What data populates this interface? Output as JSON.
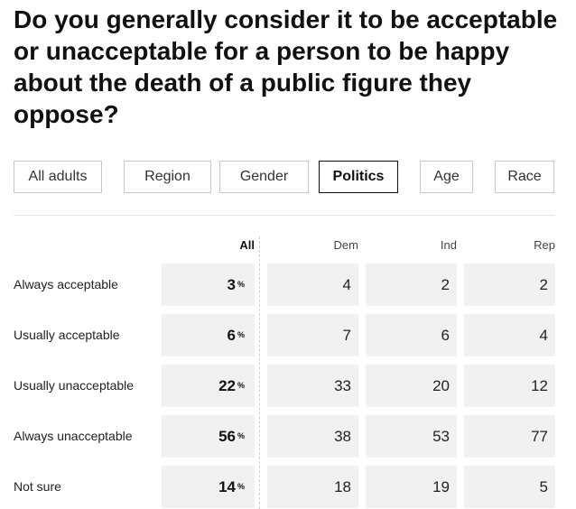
{
  "title": "Do you generally consider it to be acceptable or unacceptable for a person to be happy about the death of a public figure they oppose?",
  "tabs": [
    {
      "label": "All adults",
      "active": false
    },
    {
      "label": "Region",
      "active": false
    },
    {
      "label": "Gender",
      "active": false
    },
    {
      "label": "Politics",
      "active": true
    },
    {
      "label": "Age",
      "active": false
    },
    {
      "label": "Race",
      "active": false
    }
  ],
  "percent_symbol": "%",
  "chart_data": {
    "type": "table",
    "columns": [
      "All",
      "Dem",
      "Ind",
      "Rep"
    ],
    "rows": [
      {
        "label": "Always acceptable",
        "values": [
          3,
          4,
          2,
          2
        ]
      },
      {
        "label": "Usually acceptable",
        "values": [
          6,
          7,
          6,
          4
        ]
      },
      {
        "label": "Usually unacceptable",
        "values": [
          22,
          33,
          20,
          12
        ]
      },
      {
        "label": "Always unacceptable",
        "values": [
          56,
          38,
          53,
          77
        ]
      },
      {
        "label": "Not sure",
        "values": [
          14,
          18,
          19,
          5
        ]
      }
    ]
  }
}
